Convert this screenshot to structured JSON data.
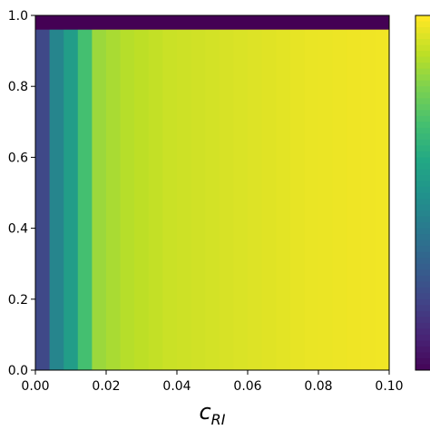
{
  "chart_data": {
    "type": "heatmap",
    "title": "",
    "xlabel": "c_RI",
    "xlabel_main": "c",
    "xlabel_sub": "RI",
    "ylabel": "",
    "xlim": [
      0.0,
      0.1
    ],
    "ylim": [
      0.0,
      1.0
    ],
    "x_ticks": [
      "0.00",
      "0.02",
      "0.04",
      "0.06",
      "0.08",
      "0.10"
    ],
    "y_ticks": [
      "0.0",
      "0.2",
      "0.4",
      "0.6",
      "0.8",
      "1.0"
    ],
    "colormap": "viridis",
    "grid": false,
    "colorbar": "right (tick labels cropped)",
    "columns_x_edges": [
      0.0,
      0.004,
      0.008,
      0.012,
      0.016,
      0.02,
      0.024,
      0.028,
      0.032,
      0.036,
      0.04,
      0.044,
      0.048,
      0.052,
      0.056,
      0.06,
      0.064,
      0.068,
      0.072,
      0.076,
      0.08,
      0.084,
      0.088,
      0.092,
      0.096,
      0.1
    ],
    "column_values": [
      0.22,
      0.45,
      0.55,
      0.7,
      0.85,
      0.87,
      0.89,
      0.9,
      0.91,
      0.92,
      0.925,
      0.93,
      0.935,
      0.94,
      0.945,
      0.95,
      0.955,
      0.96,
      0.965,
      0.97,
      0.972,
      0.975,
      0.978,
      0.98,
      0.982
    ],
    "top_band": {
      "y_from": 0.96,
      "y_to": 1.0,
      "value": 0.0
    }
  }
}
